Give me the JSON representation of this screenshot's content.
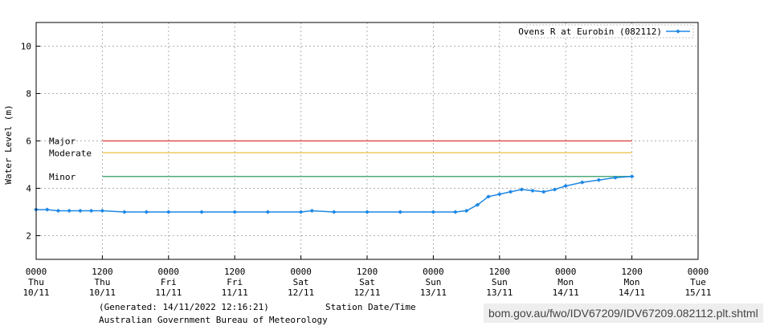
{
  "chart_data": {
    "type": "line",
    "title": "",
    "xlabel": "Station Date/Time",
    "ylabel": "Water Level (m)",
    "ylim": [
      1,
      11
    ],
    "yticks": [
      "2",
      "4",
      "6",
      "8",
      "10"
    ],
    "xlim": [
      "2022-11-10 00:00",
      "2022-11-15 00:00"
    ],
    "xticks": [
      {
        "time": "0000",
        "day": "Thu",
        "date": "10/11"
      },
      {
        "time": "1200",
        "day": "Thu",
        "date": "10/11"
      },
      {
        "time": "0000",
        "day": "Fri",
        "date": "11/11"
      },
      {
        "time": "1200",
        "day": "Fri",
        "date": "11/11"
      },
      {
        "time": "0000",
        "day": "Sat",
        "date": "12/11"
      },
      {
        "time": "1200",
        "day": "Sat",
        "date": "12/11"
      },
      {
        "time": "0000",
        "day": "Sun",
        "date": "13/11"
      },
      {
        "time": "1200",
        "day": "Sun",
        "date": "13/11"
      },
      {
        "time": "0000",
        "day": "Mon",
        "date": "14/11"
      },
      {
        "time": "1200",
        "day": "Mon",
        "date": "14/11"
      },
      {
        "time": "0000",
        "day": "Tue",
        "date": "15/11"
      }
    ],
    "grid": true,
    "legend": "top-right",
    "series": [
      {
        "name": "Ovens R at Eurobin (082112)",
        "color": "#1e88e5",
        "x": [
          "2022-11-10 00:00",
          "2022-11-10 02:00",
          "2022-11-10 04:00",
          "2022-11-10 06:00",
          "2022-11-10 08:00",
          "2022-11-10 10:00",
          "2022-11-10 12:00",
          "2022-11-10 16:00",
          "2022-11-10 20:00",
          "2022-11-11 00:00",
          "2022-11-11 06:00",
          "2022-11-11 12:00",
          "2022-11-11 18:00",
          "2022-11-12 00:00",
          "2022-11-12 02:00",
          "2022-11-12 06:00",
          "2022-11-12 12:00",
          "2022-11-12 18:00",
          "2022-11-13 00:00",
          "2022-11-13 04:00",
          "2022-11-13 06:00",
          "2022-11-13 08:00",
          "2022-11-13 10:00",
          "2022-11-13 12:00",
          "2022-11-13 14:00",
          "2022-11-13 16:00",
          "2022-11-13 18:00",
          "2022-11-13 20:00",
          "2022-11-13 22:00",
          "2022-11-14 00:00",
          "2022-11-14 03:00",
          "2022-11-14 06:00",
          "2022-11-14 09:00",
          "2022-11-14 12:00"
        ],
        "values": [
          3.1,
          3.1,
          3.05,
          3.05,
          3.05,
          3.05,
          3.05,
          3.0,
          3.0,
          3.0,
          3.0,
          3.0,
          3.0,
          3.0,
          3.05,
          3.0,
          3.0,
          3.0,
          3.0,
          3.0,
          3.05,
          3.3,
          3.65,
          3.75,
          3.85,
          3.95,
          3.9,
          3.85,
          3.95,
          4.1,
          4.25,
          4.35,
          4.45,
          4.5
        ]
      }
    ],
    "thresholds": [
      {
        "label": "Major",
        "value": 6.0,
        "color": "#e05050"
      },
      {
        "label": "Moderate",
        "value": 5.5,
        "color": "#f0c860"
      },
      {
        "label": "Minor",
        "value": 4.5,
        "color": "#50a878"
      }
    ]
  },
  "footer": {
    "generated": "(Generated: 14/11/2022 12:16:21)",
    "agency": "Australian Government Bureau of Meteorology",
    "url": "bom.gov.au/fwo/IDV67209/IDV67209.082112.plt.shtml"
  }
}
